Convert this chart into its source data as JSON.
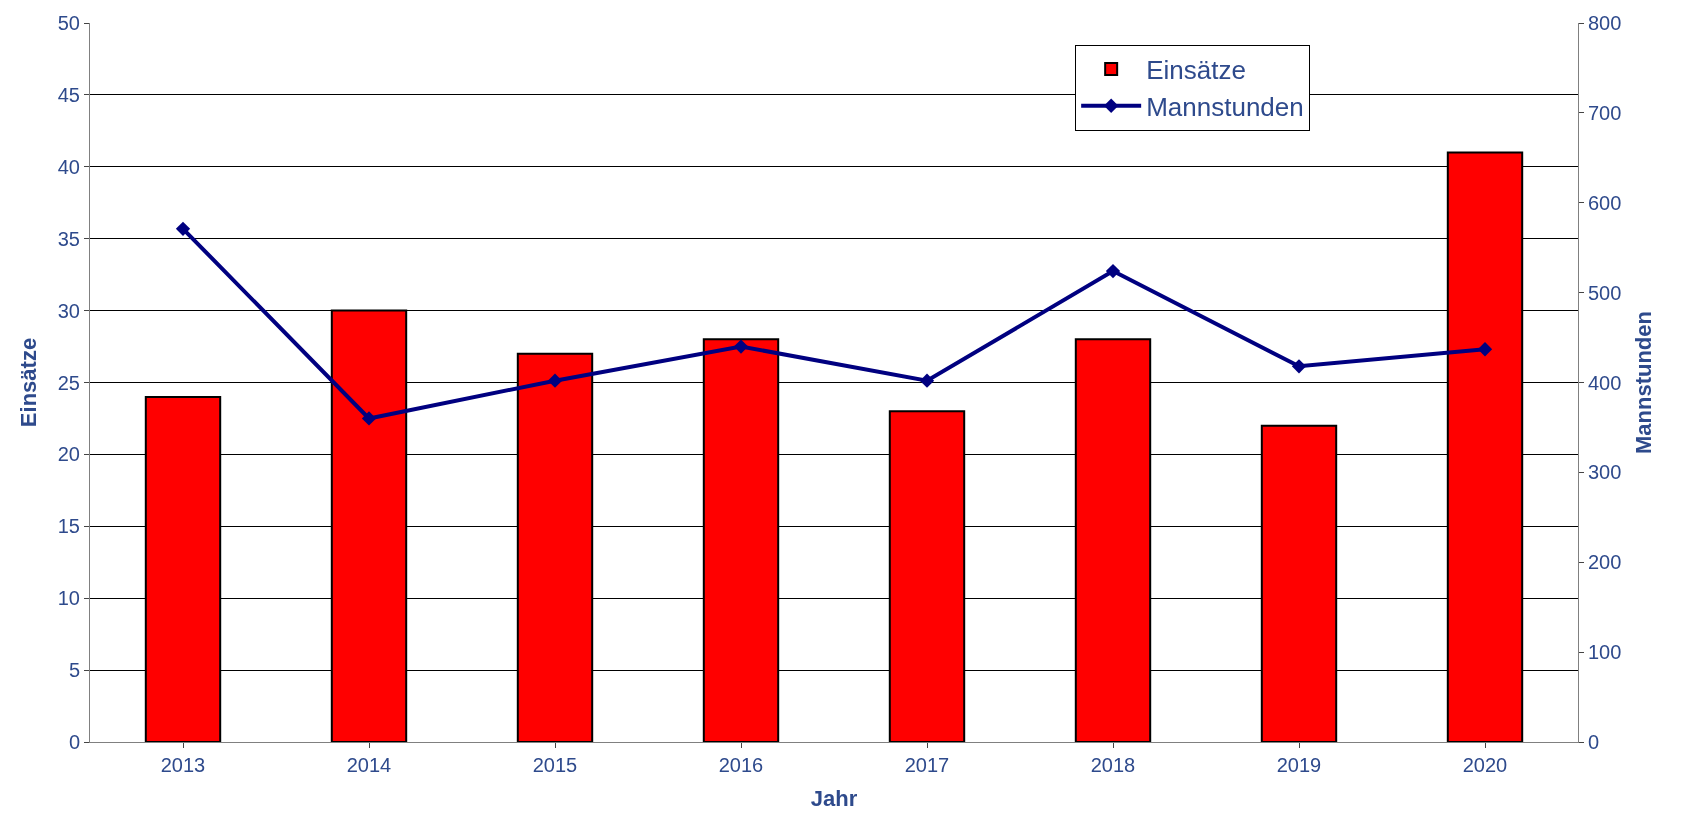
{
  "chart_data": {
    "type": "bar",
    "xlabel": "Jahr",
    "ylabel": "Einsätze",
    "y2label": "Mannstunden",
    "categories": [
      "2013",
      "2014",
      "2015",
      "2016",
      "2017",
      "2018",
      "2019",
      "2020"
    ],
    "series": [
      {
        "name": "Einsätze",
        "color": "#ff0000",
        "values": [
          24,
          30,
          27,
          28,
          23,
          28,
          22,
          41
        ]
      },
      {
        "name": "Mannstunden",
        "type": "line",
        "axis": "y2",
        "color": "#000080",
        "marker": "diamond",
        "values": [
          571,
          360,
          402,
          440,
          402,
          524,
          418,
          437
        ]
      }
    ],
    "ylim": [
      0,
      50
    ],
    "yticks": [
      0,
      5,
      10,
      15,
      20,
      25,
      30,
      35,
      40,
      45,
      50
    ],
    "y2lim": [
      0,
      800
    ],
    "y2ticks": [
      0,
      100,
      200,
      300,
      400,
      500,
      600,
      700,
      800
    ],
    "grid": "y",
    "legend": "top right"
  }
}
